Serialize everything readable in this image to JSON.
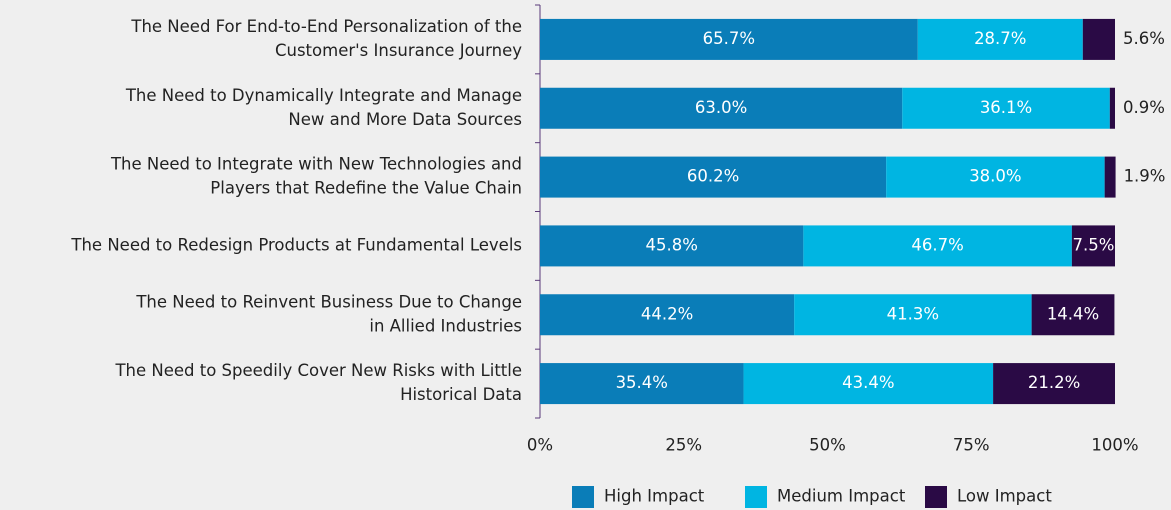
{
  "chart_data": {
    "type": "stacked_barh",
    "categories": [
      [
        "The Need For End-to-End Personalization of the",
        "Customer's Insurance Journey"
      ],
      [
        "The Need to Dynamically Integrate and Manage",
        "New and More Data Sources"
      ],
      [
        "The Need to Integrate with New Technologies and",
        "Players that Redefine the Value Chain"
      ],
      [
        "The Need to Redesign Products at Fundamental Levels"
      ],
      [
        "The Need to Reinvent Business Due to Change",
        "in Allied Industries"
      ],
      [
        "The Need to Speedily Cover New Risks with Little",
        "Historical Data"
      ]
    ],
    "series": [
      {
        "name": "High Impact",
        "color": "#0a7db8",
        "values": [
          65.7,
          63.0,
          60.2,
          45.8,
          44.2,
          35.4
        ],
        "value_labels": [
          "65.7%",
          "63.0%",
          "60.2%",
          "45.8%",
          "44.2%",
          "35.4%"
        ]
      },
      {
        "name": "Medium Impact",
        "color": "#00b5e2",
        "values": [
          28.7,
          36.1,
          38.0,
          46.7,
          41.3,
          43.4
        ],
        "value_labels": [
          "28.7%",
          "36.1%",
          "38.0%",
          "46.7%",
          "41.3%",
          "43.4%"
        ]
      },
      {
        "name": "Low Impact",
        "color": "#2a0a45",
        "values": [
          5.6,
          0.9,
          1.9,
          7.5,
          14.4,
          21.2
        ],
        "value_labels": [
          "5.6%",
          "0.9%",
          "1.9%",
          "7.5%",
          "14.4%",
          "21.2%"
        ]
      }
    ],
    "xlim": [
      0,
      100
    ],
    "xticks": [
      {
        "value": 0,
        "label": "0%"
      },
      {
        "value": 25,
        "label": "25%"
      },
      {
        "value": 50,
        "label": "50%"
      },
      {
        "value": 75,
        "label": "75%"
      },
      {
        "value": 100,
        "label": "100%"
      }
    ],
    "legend": "bottom"
  }
}
